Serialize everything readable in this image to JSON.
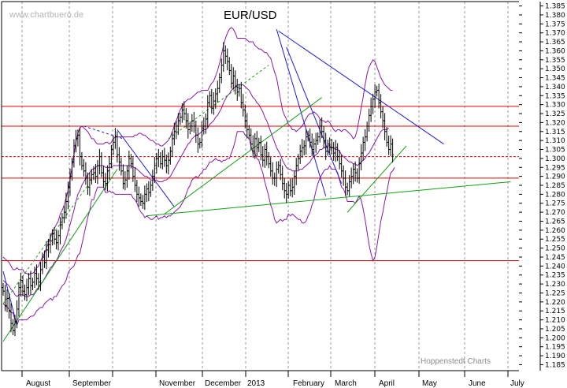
{
  "chart_data": {
    "type": "ohlc",
    "title": "EUR/USD",
    "watermark": "www.chartbuero.de",
    "credit": "Hoppenstedt Charts",
    "xlabel": "",
    "ylabel": "",
    "ylim": [
      1.183,
      1.387
    ],
    "y_ticks": [
      "1.385",
      "1.380",
      "1.375",
      "1.370",
      "1.365",
      "1.360",
      "1.355",
      "1.350",
      "1.345",
      "1.340",
      "1.335",
      "1.330",
      "1.325",
      "1.320",
      "1.315",
      "1.310",
      "1.305",
      "1.300",
      "1.295",
      "1.290",
      "1.285",
      "1.280",
      "1.275",
      "1.270",
      "1.265",
      "1.260",
      "1.255",
      "1.250",
      "1.245",
      "1.240",
      "1.235",
      "1.230",
      "1.225",
      "1.220",
      "1.215",
      "1.210",
      "1.205",
      "1.200",
      "1.195",
      "1.190",
      "1.185"
    ],
    "months": [
      "August",
      "September",
      "November",
      "December",
      "2013",
      "February",
      "March",
      "April",
      "May",
      "June",
      "July"
    ],
    "grid": "vertical dashed at month starts",
    "colors": {
      "price": "#000000",
      "support_resistance": "#e00000",
      "bands": "#8a1aa8",
      "trend_down": "#1a1ad8",
      "trend_up": "#10a010"
    },
    "support_resistance_levels": [
      1.329,
      1.318,
      1.301,
      1.289,
      1.243
    ],
    "closes": [
      1.226,
      1.218,
      1.222,
      1.215,
      1.208,
      1.204,
      1.209,
      1.216,
      1.228,
      1.232,
      1.226,
      1.224,
      1.228,
      1.233,
      1.229,
      1.231,
      1.236,
      1.233,
      1.231,
      1.238,
      1.245,
      1.242,
      1.249,
      1.252,
      1.254,
      1.258,
      1.255,
      1.253,
      1.257,
      1.263,
      1.267,
      1.27,
      1.276,
      1.284,
      1.29,
      1.298,
      1.307,
      1.311,
      1.313,
      1.301,
      1.296,
      1.293,
      1.289,
      1.284,
      1.288,
      1.291,
      1.292,
      1.29,
      1.296,
      1.301,
      1.292,
      1.287,
      1.286,
      1.293,
      1.297,
      1.305,
      1.309,
      1.312,
      1.302,
      1.298,
      1.293,
      1.286,
      1.288,
      1.293,
      1.3,
      1.297,
      1.29,
      1.285,
      1.28,
      1.278,
      1.276,
      1.275,
      1.28,
      1.283,
      1.281,
      1.285,
      1.29,
      1.296,
      1.3,
      1.301,
      1.297,
      1.301,
      1.299,
      1.296,
      1.299,
      1.304,
      1.311,
      1.315,
      1.318,
      1.321,
      1.323,
      1.327,
      1.325,
      1.321,
      1.316,
      1.318,
      1.321,
      1.318,
      1.313,
      1.308,
      1.309,
      1.317,
      1.318,
      1.322,
      1.331,
      1.335,
      1.328,
      1.332,
      1.336,
      1.339,
      1.345,
      1.352,
      1.36,
      1.357,
      1.354,
      1.349,
      1.342,
      1.346,
      1.34,
      1.337,
      1.339,
      1.331,
      1.327,
      1.321,
      1.316,
      1.313,
      1.308,
      1.304,
      1.311,
      1.306,
      1.309,
      1.302,
      1.299,
      1.305,
      1.301,
      1.297,
      1.293,
      1.289,
      1.289,
      1.294,
      1.296,
      1.291,
      1.286,
      1.282,
      1.28,
      1.285,
      1.282,
      1.284,
      1.29,
      1.296,
      1.3,
      1.304,
      1.306,
      1.307,
      1.312,
      1.313,
      1.309,
      1.305,
      1.308,
      1.31,
      1.312,
      1.318,
      1.315,
      1.31,
      1.304,
      1.308,
      1.306,
      1.306,
      1.303,
      1.306,
      1.301,
      1.297,
      1.293,
      1.289,
      1.284,
      1.282,
      1.287,
      1.29,
      1.294,
      1.292,
      1.289,
      1.297,
      1.303,
      1.309,
      1.312,
      1.318,
      1.324,
      1.329,
      1.333,
      1.337,
      1.338,
      1.331,
      1.326,
      1.321,
      1.315,
      1.309,
      1.305,
      1.308,
      1.302
    ],
    "bollinger_mid": [
      1.232,
      1.231,
      1.23,
      1.229,
      1.227,
      1.226,
      1.224,
      1.223,
      1.224,
      1.224,
      1.224,
      1.223,
      1.223,
      1.223,
      1.224,
      1.224,
      1.225,
      1.227,
      1.228,
      1.23,
      1.231,
      1.233,
      1.235,
      1.237,
      1.239,
      1.24,
      1.242,
      1.243,
      1.245,
      1.248,
      1.25,
      1.252,
      1.255,
      1.259,
      1.263,
      1.267,
      1.271,
      1.276,
      1.28,
      1.282,
      1.285,
      1.287,
      1.289,
      1.291,
      1.292,
      1.294,
      1.294,
      1.295,
      1.296,
      1.296,
      1.296,
      1.296,
      1.295,
      1.295,
      1.295,
      1.295,
      1.296,
      1.296,
      1.296,
      1.296,
      1.296,
      1.296,
      1.296,
      1.296,
      1.296,
      1.296,
      1.295,
      1.295,
      1.294,
      1.293,
      1.292,
      1.291,
      1.29,
      1.29,
      1.289,
      1.288,
      1.288,
      1.288,
      1.288,
      1.287,
      1.287,
      1.287,
      1.288,
      1.288,
      1.289,
      1.29,
      1.292,
      1.294,
      1.296,
      1.298,
      1.3,
      1.302,
      1.304,
      1.306,
      1.308,
      1.309,
      1.311,
      1.312,
      1.313,
      1.313,
      1.314,
      1.315,
      1.316,
      1.316,
      1.317,
      1.319,
      1.32,
      1.321,
      1.323,
      1.324,
      1.326,
      1.328,
      1.331,
      1.333,
      1.335,
      1.336,
      1.338,
      1.339,
      1.34,
      1.341,
      1.341,
      1.341,
      1.341,
      1.34,
      1.339,
      1.338,
      1.336,
      1.334,
      1.333,
      1.331,
      1.33,
      1.328,
      1.326,
      1.323,
      1.321,
      1.318,
      1.315,
      1.312,
      1.309,
      1.306,
      1.304,
      1.302,
      1.299,
      1.297,
      1.295,
      1.294,
      1.294,
      1.293,
      1.293,
      1.293,
      1.293,
      1.294,
      1.294,
      1.295,
      1.296,
      1.297,
      1.298,
      1.3,
      1.301,
      1.302,
      1.303,
      1.305,
      1.305,
      1.306,
      1.306,
      1.307,
      1.307,
      1.306,
      1.306,
      1.305,
      1.305,
      1.304,
      1.302,
      1.301,
      1.3,
      1.299,
      1.298,
      1.298,
      1.297,
      1.297,
      1.296,
      1.297,
      1.298,
      1.299,
      1.3,
      1.302,
      1.303,
      1.305,
      1.307,
      1.309,
      1.311,
      1.313,
      1.315,
      1.316,
      1.316,
      1.316,
      1.317
    ],
    "bollinger_upper": [
      1.245,
      1.244,
      1.243,
      1.242,
      1.24,
      1.238,
      1.238,
      1.239,
      1.238,
      1.238,
      1.238,
      1.236,
      1.236,
      1.235,
      1.236,
      1.236,
      1.237,
      1.239,
      1.24,
      1.243,
      1.245,
      1.247,
      1.25,
      1.253,
      1.256,
      1.259,
      1.261,
      1.263,
      1.265,
      1.269,
      1.271,
      1.274,
      1.278,
      1.282,
      1.288,
      1.295,
      1.302,
      1.309,
      1.314,
      1.317,
      1.318,
      1.317,
      1.316,
      1.315,
      1.313,
      1.311,
      1.311,
      1.309,
      1.308,
      1.308,
      1.308,
      1.308,
      1.309,
      1.309,
      1.308,
      1.309,
      1.311,
      1.312,
      1.312,
      1.312,
      1.312,
      1.312,
      1.312,
      1.312,
      1.312,
      1.312,
      1.312,
      1.313,
      1.313,
      1.314,
      1.314,
      1.313,
      1.313,
      1.312,
      1.311,
      1.31,
      1.31,
      1.309,
      1.308,
      1.308,
      1.307,
      1.307,
      1.308,
      1.309,
      1.31,
      1.312,
      1.315,
      1.318,
      1.321,
      1.324,
      1.327,
      1.329,
      1.331,
      1.332,
      1.333,
      1.333,
      1.334,
      1.335,
      1.336,
      1.337,
      1.337,
      1.338,
      1.338,
      1.338,
      1.338,
      1.34,
      1.342,
      1.343,
      1.346,
      1.349,
      1.353,
      1.358,
      1.363,
      1.367,
      1.37,
      1.372,
      1.373,
      1.372,
      1.37,
      1.367,
      1.367,
      1.367,
      1.367,
      1.367,
      1.366,
      1.365,
      1.365,
      1.365,
      1.363,
      1.362,
      1.361,
      1.361,
      1.36,
      1.359,
      1.359,
      1.357,
      1.356,
      1.352,
      1.348,
      1.345,
      1.339,
      1.333,
      1.327,
      1.324,
      1.322,
      1.319,
      1.318,
      1.316,
      1.316,
      1.315,
      1.316,
      1.317,
      1.318,
      1.32,
      1.322,
      1.324,
      1.325,
      1.325,
      1.326,
      1.325,
      1.324,
      1.322,
      1.321,
      1.321,
      1.32,
      1.321,
      1.32,
      1.318,
      1.316,
      1.315,
      1.316,
      1.316,
      1.315,
      1.316,
      1.316,
      1.315,
      1.314,
      1.313,
      1.311,
      1.312,
      1.316,
      1.322,
      1.328,
      1.334,
      1.341,
      1.347,
      1.351,
      1.353,
      1.355,
      1.354,
      1.351,
      1.348,
      1.345,
      1.343,
      1.341,
      1.34,
      1.339,
      1.338,
      1.338
    ],
    "bollinger_lower": [
      1.219,
      1.218,
      1.217,
      1.216,
      1.214,
      1.214,
      1.21,
      1.207,
      1.21,
      1.21,
      1.21,
      1.21,
      1.21,
      1.211,
      1.212,
      1.212,
      1.213,
      1.215,
      1.216,
      1.217,
      1.217,
      1.219,
      1.22,
      1.221,
      1.222,
      1.221,
      1.223,
      1.223,
      1.225,
      1.227,
      1.229,
      1.23,
      1.232,
      1.236,
      1.238,
      1.239,
      1.24,
      1.243,
      1.246,
      1.247,
      1.252,
      1.257,
      1.262,
      1.267,
      1.271,
      1.277,
      1.277,
      1.281,
      1.284,
      1.284,
      1.284,
      1.284,
      1.281,
      1.281,
      1.282,
      1.281,
      1.281,
      1.28,
      1.28,
      1.28,
      1.28,
      1.28,
      1.28,
      1.28,
      1.28,
      1.28,
      1.278,
      1.277,
      1.275,
      1.272,
      1.27,
      1.269,
      1.267,
      1.268,
      1.267,
      1.266,
      1.266,
      1.267,
      1.268,
      1.266,
      1.267,
      1.267,
      1.268,
      1.267,
      1.268,
      1.268,
      1.269,
      1.27,
      1.271,
      1.272,
      1.273,
      1.275,
      1.277,
      1.28,
      1.283,
      1.285,
      1.288,
      1.289,
      1.29,
      1.289,
      1.291,
      1.292,
      1.294,
      1.294,
      1.296,
      1.298,
      1.298,
      1.299,
      1.3,
      1.299,
      1.299,
      1.298,
      1.299,
      1.299,
      1.3,
      1.3,
      1.303,
      1.306,
      1.31,
      1.315,
      1.315,
      1.315,
      1.315,
      1.313,
      1.312,
      1.311,
      1.307,
      1.303,
      1.303,
      1.3,
      1.299,
      1.295,
      1.292,
      1.287,
      1.283,
      1.279,
      1.274,
      1.271,
      1.266,
      1.264,
      1.265,
      1.266,
      1.265,
      1.266,
      1.266,
      1.269,
      1.268,
      1.269,
      1.268,
      1.267,
      1.266,
      1.266,
      1.264,
      1.264,
      1.265,
      1.268,
      1.27,
      1.274,
      1.277,
      1.282,
      1.286,
      1.289,
      1.291,
      1.293,
      1.294,
      1.294,
      1.296,
      1.294,
      1.294,
      1.294,
      1.292,
      1.288,
      1.284,
      1.283,
      1.28,
      1.276,
      1.276,
      1.276,
      1.276,
      1.275,
      1.277,
      1.279,
      1.277,
      1.272,
      1.266,
      1.259,
      1.252,
      1.247,
      1.243,
      1.245,
      1.251,
      1.258,
      1.265,
      1.27,
      1.276,
      1.281,
      1.287,
      1.292,
      1.293,
      1.295
    ],
    "trend_lines": [
      {
        "color": "down",
        "style": "solid",
        "from": [
          0,
          1.237
        ],
        "to": [
          7,
          1.207
        ]
      },
      {
        "color": "down",
        "style": "dashed",
        "from": [
          41,
          1.318
        ],
        "to": [
          61,
          1.311
        ]
      },
      {
        "color": "down",
        "style": "solid",
        "from": [
          58,
          1.316
        ],
        "to": [
          87,
          1.273
        ]
      },
      {
        "color": "down",
        "style": "solid",
        "from": [
          139,
          1.372
        ],
        "to": [
          164,
          1.279
        ]
      },
      {
        "color": "down",
        "style": "solid",
        "from": [
          144,
          1.362
        ],
        "to": [
          172,
          1.286
        ]
      },
      {
        "color": "down",
        "style": "solid",
        "from": [
          140,
          1.371
        ],
        "to": [
          224,
          1.308
        ]
      },
      {
        "color": "up",
        "style": "dashed",
        "from": [
          0,
          1.219
        ],
        "to": [
          43,
          1.285
        ]
      },
      {
        "color": "up",
        "style": "dashed",
        "from": [
          84,
          1.311
        ],
        "to": [
          135,
          1.352
        ]
      },
      {
        "color": "up",
        "style": "solid",
        "from": [
          0,
          1.198
        ],
        "to": [
          58,
          1.294
        ]
      },
      {
        "color": "up",
        "style": "solid",
        "from": [
          82,
          1.269
        ],
        "to": [
          162,
          1.334
        ]
      },
      {
        "color": "up",
        "style": "solid",
        "from": [
          175,
          1.27
        ],
        "to": [
          205,
          1.307
        ]
      },
      {
        "color": "up",
        "style": "solid",
        "from": [
          73,
          1.268
        ],
        "to": [
          258,
          1.287
        ]
      }
    ]
  }
}
